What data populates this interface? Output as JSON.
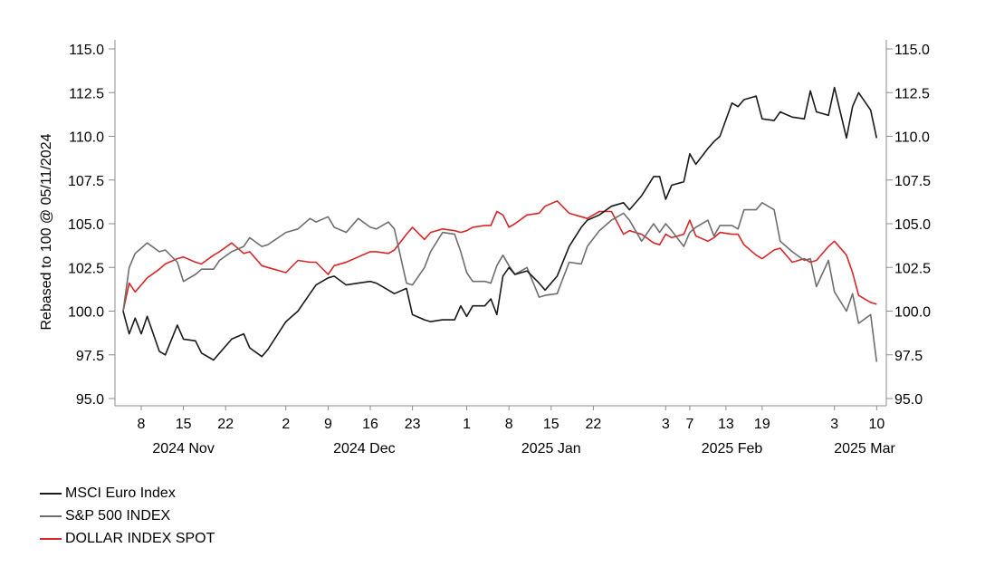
{
  "chart_data": {
    "type": "line",
    "title": "",
    "ylabel": "Rebased to 100 @ 05/11/2024",
    "ylim": [
      95.0,
      115.0
    ],
    "yticks": [
      "95.0",
      "97.5",
      "100.0",
      "102.5",
      "105.0",
      "107.5",
      "110.0",
      "112.5",
      "115.0"
    ],
    "grid": false,
    "legend_position": "bottom-left",
    "x_day_ticks": [
      {
        "date": "2024-11-08",
        "label": "8"
      },
      {
        "date": "2024-11-15",
        "label": "15"
      },
      {
        "date": "2024-11-22",
        "label": "22"
      },
      {
        "date": "2024-12-02",
        "label": "2"
      },
      {
        "date": "2024-12-09",
        "label": "9"
      },
      {
        "date": "2024-12-16",
        "label": "16"
      },
      {
        "date": "2024-12-23",
        "label": "23"
      },
      {
        "date": "2025-01-01",
        "label": "1"
      },
      {
        "date": "2025-01-08",
        "label": "8"
      },
      {
        "date": "2025-01-15",
        "label": "15"
      },
      {
        "date": "2025-01-22",
        "label": "22"
      },
      {
        "date": "2025-02-03",
        "label": "3"
      },
      {
        "date": "2025-02-07",
        "label": "7"
      },
      {
        "date": "2025-02-13",
        "label": "13"
      },
      {
        "date": "2025-02-19",
        "label": "19"
      },
      {
        "date": "2025-03-03",
        "label": "3"
      },
      {
        "date": "2025-03-10",
        "label": "10"
      }
    ],
    "x_month_labels": [
      {
        "date": "2024-11-15",
        "label": "2024 Nov"
      },
      {
        "date": "2024-12-15",
        "label": "2024 Dec"
      },
      {
        "date": "2025-01-15",
        "label": "2025 Jan"
      },
      {
        "date": "2025-02-14",
        "label": "2025 Feb"
      },
      {
        "date": "2025-03-08",
        "label": "2025 Mar"
      }
    ],
    "series": [
      {
        "name": "MSCI Euro Index",
        "color": "#1a1a1a",
        "data": [
          [
            "2024-11-05",
            100.0
          ],
          [
            "2024-11-06",
            98.7
          ],
          [
            "2024-11-07",
            99.6
          ],
          [
            "2024-11-08",
            98.7
          ],
          [
            "2024-11-09",
            99.7
          ],
          [
            "2024-11-11",
            97.7
          ],
          [
            "2024-11-12",
            97.5
          ],
          [
            "2024-11-14",
            99.2
          ],
          [
            "2024-11-15",
            98.4
          ],
          [
            "2024-11-17",
            98.3
          ],
          [
            "2024-11-18",
            97.6
          ],
          [
            "2024-11-20",
            97.2
          ],
          [
            "2024-11-21",
            97.6
          ],
          [
            "2024-11-23",
            98.4
          ],
          [
            "2024-11-25",
            98.7
          ],
          [
            "2024-11-26",
            97.9
          ],
          [
            "2024-11-28",
            97.4
          ],
          [
            "2024-11-29",
            97.8
          ],
          [
            "2024-12-02",
            99.4
          ],
          [
            "2024-12-04",
            100.0
          ],
          [
            "2024-12-06",
            101.0
          ],
          [
            "2024-12-07",
            101.5
          ],
          [
            "2024-12-09",
            101.9
          ],
          [
            "2024-12-10",
            102.0
          ],
          [
            "2024-12-12",
            101.5
          ],
          [
            "2024-12-14",
            101.6
          ],
          [
            "2024-12-16",
            101.7
          ],
          [
            "2024-12-17",
            101.6
          ],
          [
            "2024-12-19",
            101.2
          ],
          [
            "2024-12-20",
            101.0
          ],
          [
            "2024-12-22",
            101.3
          ],
          [
            "2024-12-23",
            99.8
          ],
          [
            "2024-12-25",
            99.5
          ],
          [
            "2024-12-26",
            99.4
          ],
          [
            "2024-12-28",
            99.5
          ],
          [
            "2024-12-30",
            99.5
          ],
          [
            "2024-12-31",
            100.3
          ],
          [
            "2025-01-01",
            99.7
          ],
          [
            "2025-01-02",
            100.3
          ],
          [
            "2025-01-04",
            100.3
          ],
          [
            "2025-01-05",
            100.7
          ],
          [
            "2025-01-06",
            99.8
          ],
          [
            "2025-01-07",
            102.0
          ],
          [
            "2025-01-08",
            102.5
          ],
          [
            "2025-01-09",
            102.1
          ],
          [
            "2025-01-11",
            102.3
          ],
          [
            "2025-01-13",
            101.6
          ],
          [
            "2025-01-14",
            101.2
          ],
          [
            "2025-01-16",
            102.0
          ],
          [
            "2025-01-18",
            103.7
          ],
          [
            "2025-01-20",
            104.8
          ],
          [
            "2025-01-21",
            105.2
          ],
          [
            "2025-01-23",
            105.5
          ],
          [
            "2025-01-25",
            106.0
          ],
          [
            "2025-01-27",
            106.2
          ],
          [
            "2025-01-28",
            105.8
          ],
          [
            "2025-01-30",
            106.6
          ],
          [
            "2025-02-01",
            107.7
          ],
          [
            "2025-02-02",
            107.7
          ],
          [
            "2025-02-03",
            106.4
          ],
          [
            "2025-02-04",
            107.2
          ],
          [
            "2025-02-06",
            107.4
          ],
          [
            "2025-02-07",
            109.0
          ],
          [
            "2025-02-08",
            108.4
          ],
          [
            "2025-02-10",
            109.3
          ],
          [
            "2025-02-11",
            109.7
          ],
          [
            "2025-02-12",
            110.0
          ],
          [
            "2025-02-14",
            111.9
          ],
          [
            "2025-02-15",
            111.7
          ],
          [
            "2025-02-16",
            112.1
          ],
          [
            "2025-02-18",
            112.3
          ],
          [
            "2025-02-19",
            111.0
          ],
          [
            "2025-02-21",
            110.9
          ],
          [
            "2025-02-22",
            111.4
          ],
          [
            "2025-02-24",
            111.1
          ],
          [
            "2025-02-26",
            111.0
          ],
          [
            "2025-02-27",
            112.6
          ],
          [
            "2025-02-28",
            111.4
          ],
          [
            "2025-03-02",
            111.2
          ],
          [
            "2025-03-03",
            112.8
          ],
          [
            "2025-03-05",
            109.9
          ],
          [
            "2025-03-06",
            111.7
          ],
          [
            "2025-03-07",
            112.5
          ],
          [
            "2025-03-09",
            111.5
          ],
          [
            "2025-03-10",
            109.9
          ]
        ]
      },
      {
        "name": "S&P 500 INDEX",
        "color": "#6e6e6e",
        "data": [
          [
            "2024-11-05",
            100.0
          ],
          [
            "2024-11-06",
            102.5
          ],
          [
            "2024-11-07",
            103.3
          ],
          [
            "2024-11-08",
            103.6
          ],
          [
            "2024-11-09",
            103.9
          ],
          [
            "2024-11-11",
            103.4
          ],
          [
            "2024-11-12",
            103.5
          ],
          [
            "2024-11-14",
            102.8
          ],
          [
            "2024-11-15",
            101.7
          ],
          [
            "2024-11-17",
            102.1
          ],
          [
            "2024-11-18",
            102.4
          ],
          [
            "2024-11-20",
            102.4
          ],
          [
            "2024-11-21",
            102.9
          ],
          [
            "2024-11-23",
            103.4
          ],
          [
            "2024-11-25",
            103.7
          ],
          [
            "2024-11-26",
            104.2
          ],
          [
            "2024-11-28",
            103.7
          ],
          [
            "2024-11-29",
            103.8
          ],
          [
            "2024-12-02",
            104.5
          ],
          [
            "2024-12-04",
            104.7
          ],
          [
            "2024-12-06",
            105.3
          ],
          [
            "2024-12-07",
            105.1
          ],
          [
            "2024-12-09",
            105.4
          ],
          [
            "2024-12-10",
            104.8
          ],
          [
            "2024-12-12",
            104.5
          ],
          [
            "2024-12-14",
            105.3
          ],
          [
            "2024-12-16",
            104.8
          ],
          [
            "2024-12-17",
            104.7
          ],
          [
            "2024-12-19",
            105.1
          ],
          [
            "2024-12-20",
            104.7
          ],
          [
            "2024-12-22",
            101.6
          ],
          [
            "2024-12-23",
            101.5
          ],
          [
            "2024-12-25",
            102.5
          ],
          [
            "2024-12-26",
            103.4
          ],
          [
            "2024-12-28",
            104.5
          ],
          [
            "2024-12-30",
            104.4
          ],
          [
            "2024-12-31",
            103.4
          ],
          [
            "2025-01-01",
            102.2
          ],
          [
            "2025-01-02",
            101.7
          ],
          [
            "2025-01-04",
            101.7
          ],
          [
            "2025-01-05",
            101.6
          ],
          [
            "2025-01-06",
            102.6
          ],
          [
            "2025-01-07",
            103.2
          ],
          [
            "2025-01-08",
            102.6
          ],
          [
            "2025-01-09",
            102.1
          ],
          [
            "2025-01-11",
            102.5
          ],
          [
            "2025-01-13",
            100.8
          ],
          [
            "2025-01-14",
            100.9
          ],
          [
            "2025-01-16",
            101.0
          ],
          [
            "2025-01-18",
            102.8
          ],
          [
            "2025-01-20",
            102.7
          ],
          [
            "2025-01-21",
            103.7
          ],
          [
            "2025-01-23",
            104.6
          ],
          [
            "2025-01-25",
            105.2
          ],
          [
            "2025-01-27",
            105.6
          ],
          [
            "2025-01-28",
            105.2
          ],
          [
            "2025-01-30",
            104.0
          ],
          [
            "2025-02-01",
            105.0
          ],
          [
            "2025-02-02",
            104.5
          ],
          [
            "2025-02-03",
            105.0
          ],
          [
            "2025-02-04",
            104.6
          ],
          [
            "2025-02-06",
            103.7
          ],
          [
            "2025-02-07",
            104.5
          ],
          [
            "2025-02-08",
            104.8
          ],
          [
            "2025-02-10",
            105.2
          ],
          [
            "2025-02-11",
            104.3
          ],
          [
            "2025-02-12",
            104.9
          ],
          [
            "2025-02-14",
            104.9
          ],
          [
            "2025-02-15",
            104.7
          ],
          [
            "2025-02-16",
            105.8
          ],
          [
            "2025-02-18",
            105.8
          ],
          [
            "2025-02-19",
            106.2
          ],
          [
            "2025-02-21",
            105.8
          ],
          [
            "2025-02-22",
            104.0
          ],
          [
            "2025-02-24",
            103.4
          ],
          [
            "2025-02-26",
            102.9
          ],
          [
            "2025-02-27",
            103.0
          ],
          [
            "2025-02-28",
            101.4
          ],
          [
            "2025-03-02",
            102.9
          ],
          [
            "2025-03-03",
            101.1
          ],
          [
            "2025-03-05",
            100.0
          ],
          [
            "2025-03-06",
            101.0
          ],
          [
            "2025-03-07",
            99.3
          ],
          [
            "2025-03-09",
            99.8
          ],
          [
            "2025-03-10",
            97.1
          ]
        ]
      },
      {
        "name": "DOLLAR INDEX SPOT",
        "color": "#d62728",
        "data": [
          [
            "2024-11-05",
            100.0
          ],
          [
            "2024-11-06",
            101.6
          ],
          [
            "2024-11-07",
            101.1
          ],
          [
            "2024-11-08",
            101.5
          ],
          [
            "2024-11-09",
            101.9
          ],
          [
            "2024-11-11",
            102.4
          ],
          [
            "2024-11-12",
            102.7
          ],
          [
            "2024-11-14",
            103.0
          ],
          [
            "2024-11-15",
            103.1
          ],
          [
            "2024-11-17",
            102.8
          ],
          [
            "2024-11-18",
            102.7
          ],
          [
            "2024-11-20",
            103.2
          ],
          [
            "2024-11-21",
            103.4
          ],
          [
            "2024-11-23",
            103.9
          ],
          [
            "2024-11-25",
            103.3
          ],
          [
            "2024-11-26",
            103.4
          ],
          [
            "2024-11-28",
            102.6
          ],
          [
            "2024-11-29",
            102.5
          ],
          [
            "2024-12-02",
            102.2
          ],
          [
            "2024-12-04",
            102.9
          ],
          [
            "2024-12-06",
            102.8
          ],
          [
            "2024-12-07",
            102.8
          ],
          [
            "2024-12-09",
            102.1
          ],
          [
            "2024-12-10",
            102.6
          ],
          [
            "2024-12-12",
            102.8
          ],
          [
            "2024-12-14",
            103.1
          ],
          [
            "2024-12-16",
            103.4
          ],
          [
            "2024-12-17",
            103.4
          ],
          [
            "2024-12-19",
            103.3
          ],
          [
            "2024-12-20",
            103.5
          ],
          [
            "2024-12-22",
            104.4
          ],
          [
            "2024-12-23",
            104.8
          ],
          [
            "2024-12-25",
            104.1
          ],
          [
            "2024-12-26",
            104.5
          ],
          [
            "2024-12-28",
            104.7
          ],
          [
            "2024-12-30",
            104.6
          ],
          [
            "2024-12-31",
            104.5
          ],
          [
            "2025-01-01",
            104.6
          ],
          [
            "2025-01-02",
            104.8
          ],
          [
            "2025-01-04",
            104.9
          ],
          [
            "2025-01-05",
            104.9
          ],
          [
            "2025-01-06",
            105.7
          ],
          [
            "2025-01-07",
            105.5
          ],
          [
            "2025-01-08",
            104.8
          ],
          [
            "2025-01-09",
            105.0
          ],
          [
            "2025-01-11",
            105.5
          ],
          [
            "2025-01-13",
            105.6
          ],
          [
            "2025-01-14",
            106.0
          ],
          [
            "2025-01-16",
            106.3
          ],
          [
            "2025-01-18",
            105.6
          ],
          [
            "2025-01-20",
            105.4
          ],
          [
            "2025-01-21",
            105.3
          ],
          [
            "2025-01-23",
            105.7
          ],
          [
            "2025-01-25",
            105.7
          ],
          [
            "2025-01-27",
            104.4
          ],
          [
            "2025-01-28",
            104.6
          ],
          [
            "2025-01-30",
            104.4
          ],
          [
            "2025-02-01",
            103.9
          ],
          [
            "2025-02-02",
            103.8
          ],
          [
            "2025-02-03",
            104.4
          ],
          [
            "2025-02-04",
            104.2
          ],
          [
            "2025-02-06",
            104.4
          ],
          [
            "2025-02-07",
            105.2
          ],
          [
            "2025-02-08",
            104.3
          ],
          [
            "2025-02-10",
            104.0
          ],
          [
            "2025-02-11",
            104.2
          ],
          [
            "2025-02-12",
            104.5
          ],
          [
            "2025-02-14",
            104.4
          ],
          [
            "2025-02-15",
            104.4
          ],
          [
            "2025-02-16",
            103.8
          ],
          [
            "2025-02-18",
            103.2
          ],
          [
            "2025-02-19",
            103.0
          ],
          [
            "2025-02-21",
            103.5
          ],
          [
            "2025-02-22",
            103.6
          ],
          [
            "2025-02-24",
            102.8
          ],
          [
            "2025-02-26",
            103.0
          ],
          [
            "2025-02-27",
            102.8
          ],
          [
            "2025-02-28",
            102.9
          ],
          [
            "2025-03-02",
            103.7
          ],
          [
            "2025-03-03",
            104.0
          ],
          [
            "2025-03-05",
            103.2
          ],
          [
            "2025-03-06",
            102.2
          ],
          [
            "2025-03-07",
            100.9
          ],
          [
            "2025-03-09",
            100.5
          ],
          [
            "2025-03-10",
            100.4
          ]
        ]
      }
    ]
  }
}
